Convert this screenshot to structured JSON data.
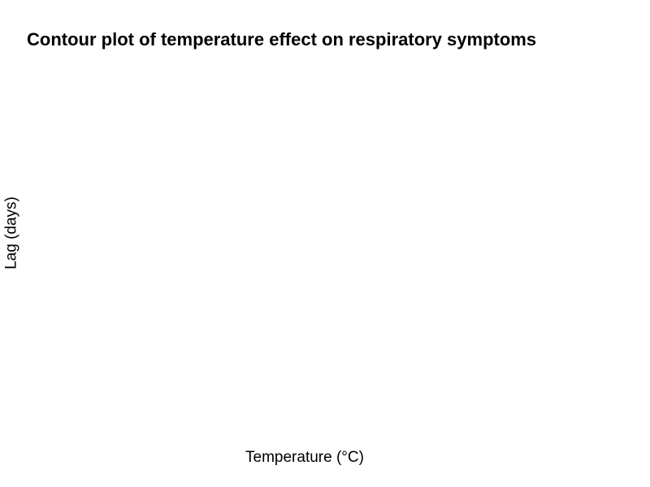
{
  "chart_data": {
    "type": "heatmap",
    "title": "Contour plot of temperature effect on respiratory symptoms",
    "xlabel": "Temperature (°C)",
    "ylabel": "Lag (days)",
    "x": [],
    "y": [],
    "z": [],
    "grid": false,
    "legend": "none"
  },
  "colors": {
    "background": "#ffffff",
    "text": "#000000"
  }
}
